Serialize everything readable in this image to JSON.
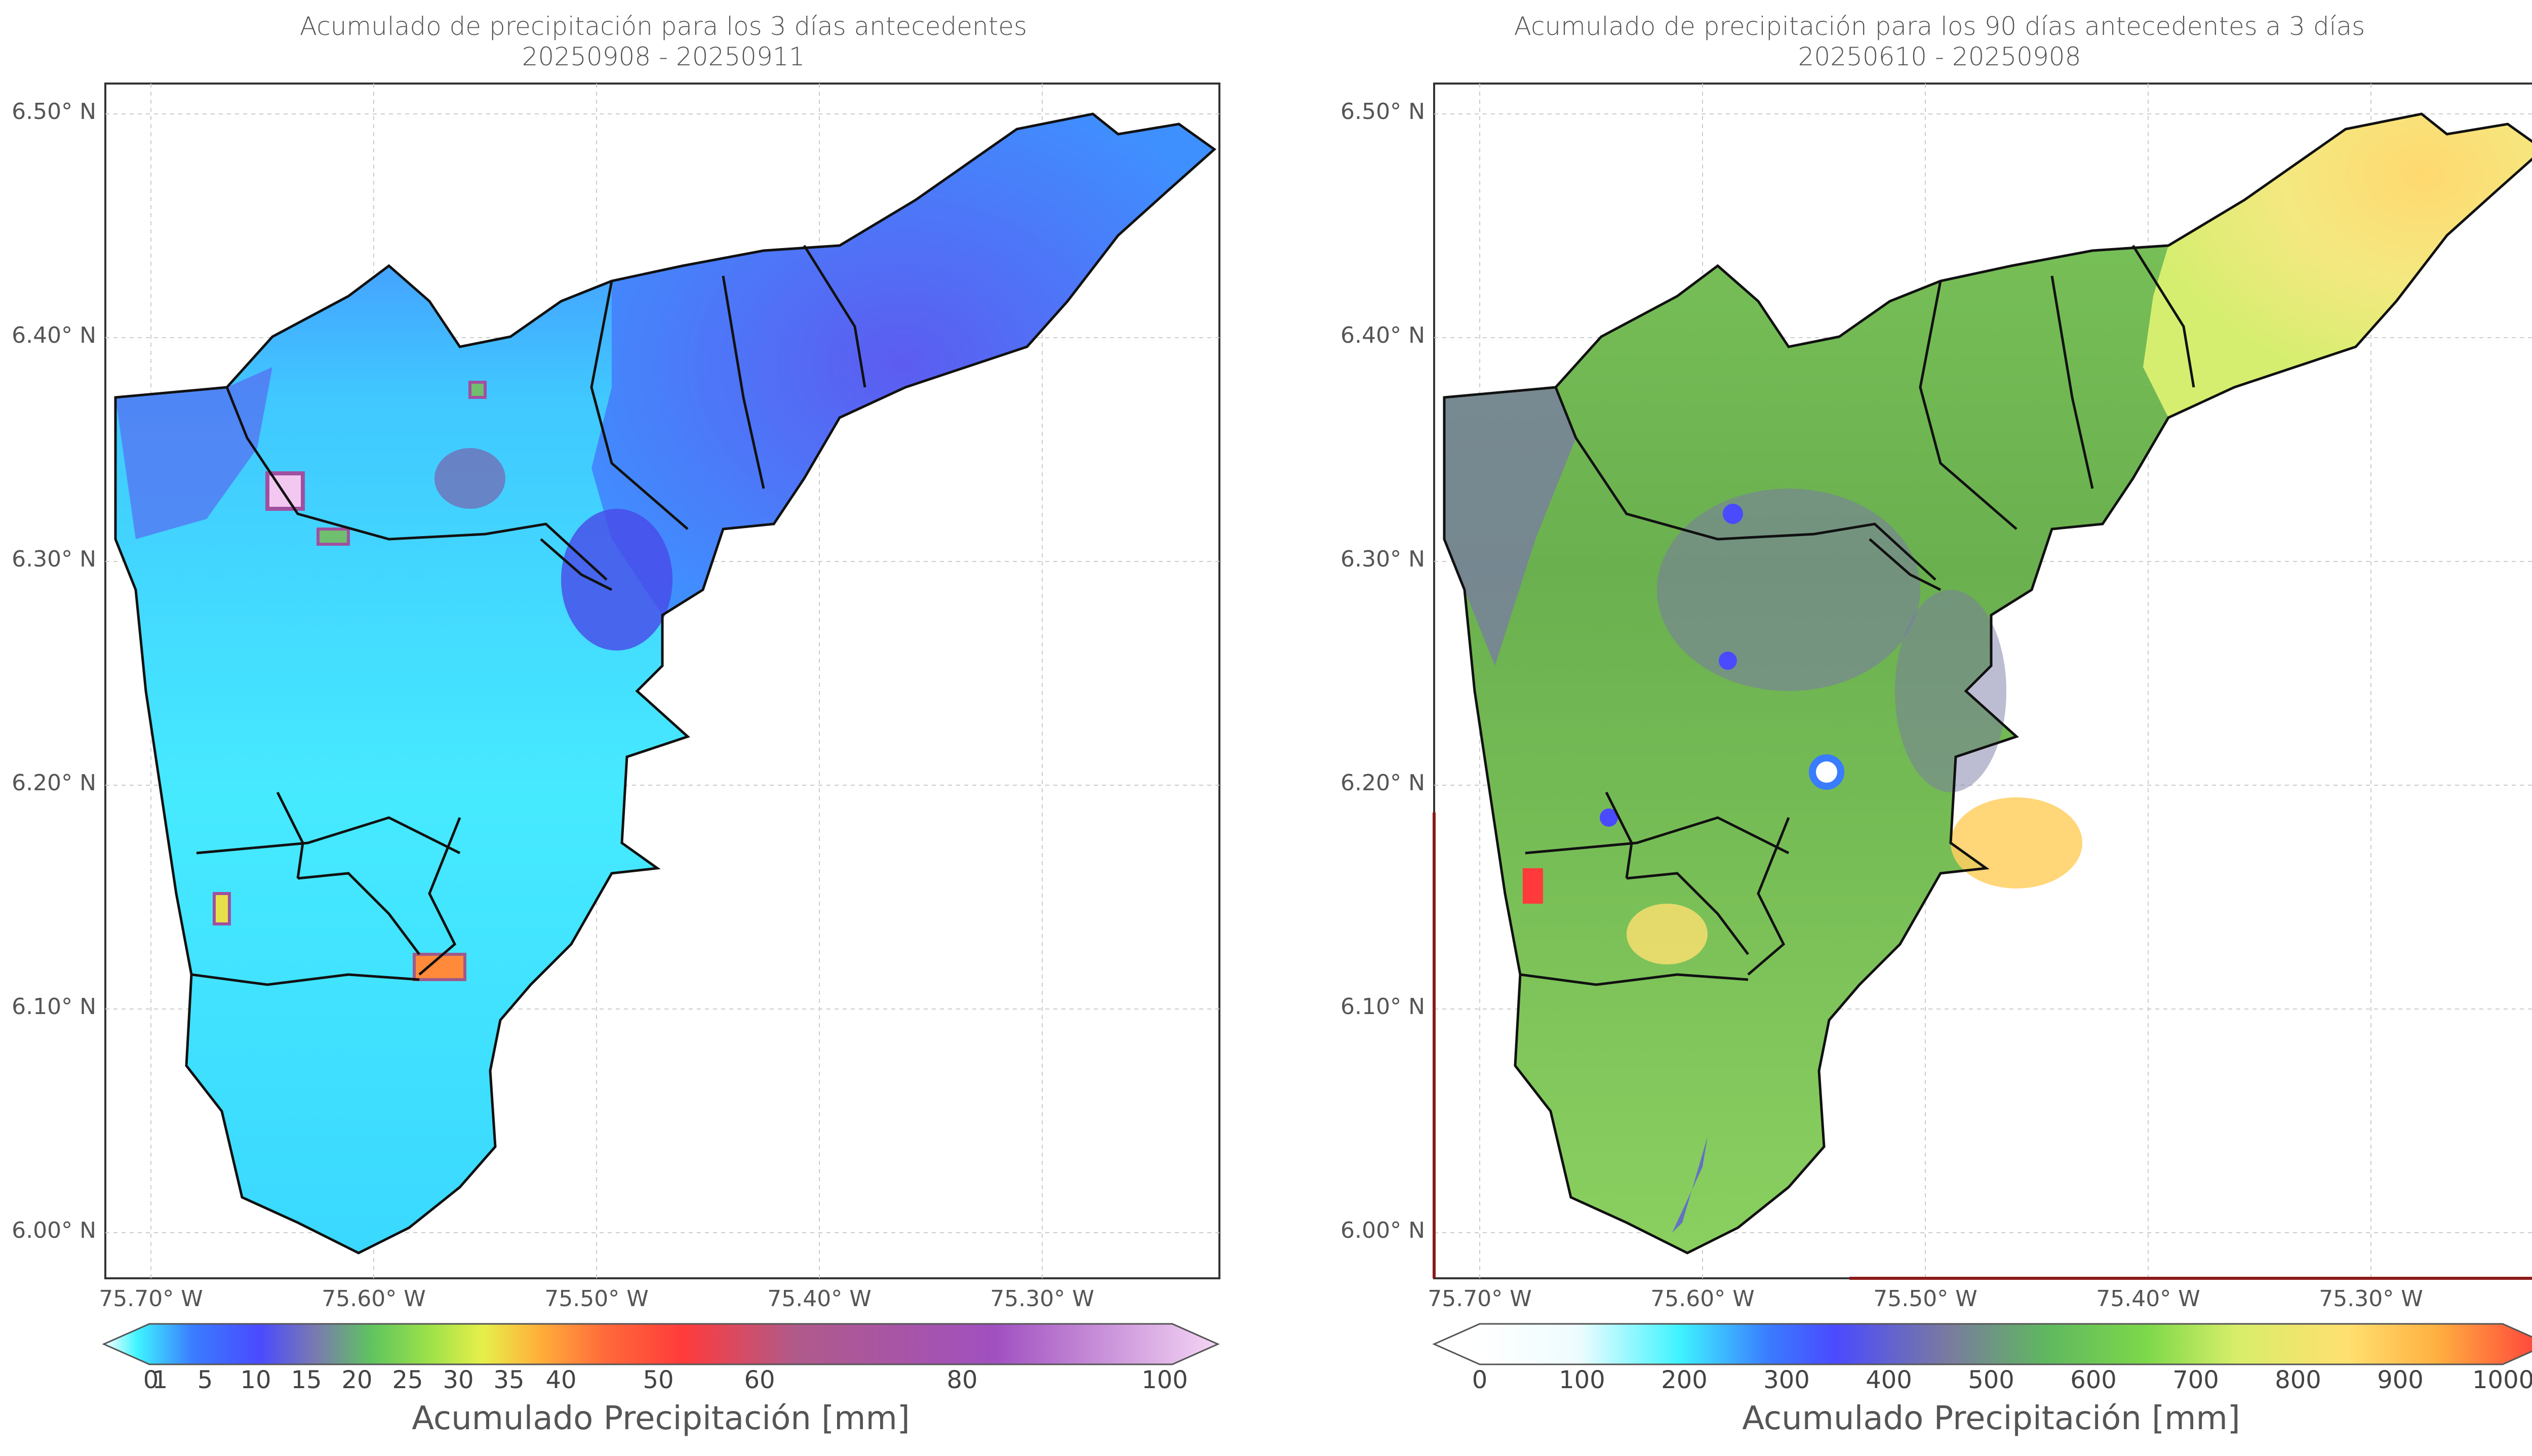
{
  "left_panel": {
    "title_line1": "Acumulado de precipitación para los 3 días antecedentes",
    "title_line2": "20250908 - 20250911",
    "colorbar_ticks": [
      "0",
      "1",
      "5",
      "10",
      "15",
      "20",
      "25",
      "30",
      "35",
      "40",
      "50",
      "60",
      "80",
      "100"
    ],
    "colorbar_label": "Acumulado Precipitación [mm]",
    "colorbar_colors": [
      "#ffffff",
      "#3ff4ff",
      "#3a7cff",
      "#4a4aff",
      "#7a7ab0",
      "#5fc45f",
      "#9ae04a",
      "#e6f04a",
      "#ffb03a",
      "#ff6a3a",
      "#ff3b3b",
      "#b05a8a",
      "#a050c0",
      "#f4d6f4"
    ]
  },
  "right_panel": {
    "title_line1": "Acumulado de precipitación para los 90 días antecedentes a 3 días",
    "title_line2": "20250610 - 20250908",
    "colorbar_ticks": [
      "0",
      "100",
      "200",
      "300",
      "400",
      "500",
      "600",
      "700",
      "800",
      "900",
      "1000"
    ],
    "colorbar_label": "Acumulado Precipitación [mm]",
    "colorbar_colors": [
      "#ffffff",
      "#3ff4ff",
      "#3a7cff",
      "#4a4aff",
      "#7a7aa0",
      "#5fb85f",
      "#7ed84a",
      "#d8ee6a",
      "#ffe070",
      "#ffb040",
      "#ff3a3a"
    ]
  },
  "axes": {
    "y_ticks": [
      "6.50° N",
      "6.40° N",
      "6.30° N",
      "6.20° N",
      "6.10° N",
      "6.00° N"
    ],
    "x_ticks": [
      "75.70° W",
      "75.60° W",
      "75.50° W",
      "75.40° W",
      "75.30° W"
    ]
  }
}
